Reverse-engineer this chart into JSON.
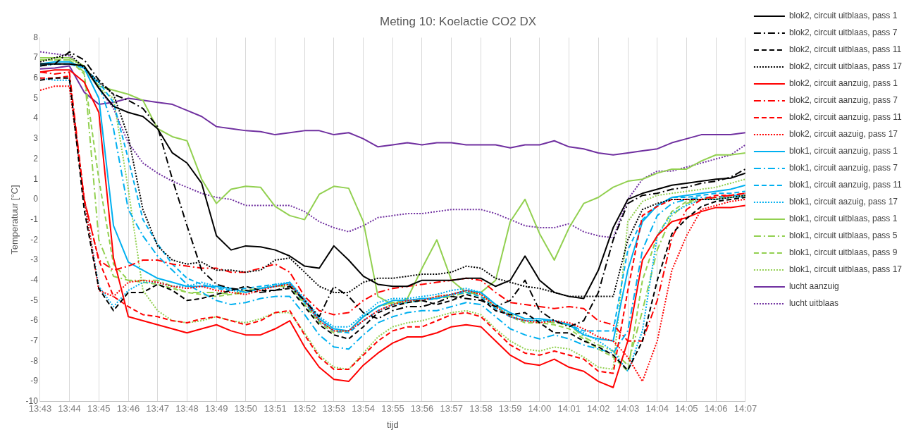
{
  "chart_data": {
    "type": "line",
    "title": "Meting 10: Koelactie CO2 DX",
    "xlabel": "tijd",
    "ylabel": "Temperatuur [°C]",
    "x": [
      13.7167,
      13.725,
      13.7333,
      13.7417,
      13.75,
      13.7583,
      13.7667,
      13.775,
      13.7833,
      13.7917,
      13.8,
      13.8083,
      13.8167,
      13.825,
      13.8333,
      13.8417,
      13.85,
      13.8583,
      13.8667,
      13.875,
      13.8833,
      13.8917,
      13.9,
      13.9083,
      13.9167,
      13.925,
      13.9333,
      13.9417,
      13.95,
      13.9583,
      13.9667,
      13.975,
      13.9833,
      13.9917,
      14.0,
      14.0083,
      14.0167,
      14.025,
      14.0333,
      14.0417,
      14.05,
      14.0583,
      14.0667,
      14.075,
      14.0833,
      14.0917,
      14.1,
      14.1083,
      14.1167
    ],
    "xlim": [
      13.7167,
      14.1167
    ],
    "xticks": [
      {
        "value": 13.7167,
        "label": "13:43"
      },
      {
        "value": 13.7333,
        "label": "13:44"
      },
      {
        "value": 13.75,
        "label": "13:45"
      },
      {
        "value": 13.7667,
        "label": "13:46"
      },
      {
        "value": 13.7833,
        "label": "13:47"
      },
      {
        "value": 13.8,
        "label": "13:48"
      },
      {
        "value": 13.8167,
        "label": "13:49"
      },
      {
        "value": 13.8333,
        "label": "13:50"
      },
      {
        "value": 13.85,
        "label": "13:51"
      },
      {
        "value": 13.8667,
        "label": "13:52"
      },
      {
        "value": 13.8833,
        "label": "13:53"
      },
      {
        "value": 13.9,
        "label": "13:54"
      },
      {
        "value": 13.9167,
        "label": "13:55"
      },
      {
        "value": 13.9333,
        "label": "13:56"
      },
      {
        "value": 13.95,
        "label": "13:57"
      },
      {
        "value": 13.9667,
        "label": "13:58"
      },
      {
        "value": 13.9833,
        "label": "13:59"
      },
      {
        "value": 14.0,
        "label": "14:00"
      },
      {
        "value": 14.0167,
        "label": "14:01"
      },
      {
        "value": 14.0333,
        "label": "14:02"
      },
      {
        "value": 14.05,
        "label": "14:03"
      },
      {
        "value": 14.0667,
        "label": "14:04"
      },
      {
        "value": 14.0833,
        "label": "14:05"
      },
      {
        "value": 14.1,
        "label": "14:06"
      },
      {
        "value": 14.1167,
        "label": "14:07"
      }
    ],
    "ylim": [
      -10,
      8
    ],
    "yticks": [
      -10,
      -9,
      -8,
      -7,
      -6,
      -5,
      -4,
      -3,
      -2,
      -1,
      0,
      1,
      2,
      3,
      4,
      5,
      6,
      7,
      8
    ],
    "grid": "x",
    "legend": "right",
    "marker": "none",
    "series": [
      {
        "name": "blok2, circuit uitblaas, pass 1",
        "color": "#000000",
        "line_style": "solid",
        "values": [
          6.7,
          6.7,
          6.7,
          6.6,
          5.5,
          4.6,
          4.3,
          4.1,
          3.5,
          2.3,
          1.8,
          0.8,
          -1.8,
          -2.5,
          -2.3,
          -2.35,
          -2.5,
          -2.8,
          -3.3,
          -3.4,
          -2.3,
          -3.0,
          -3.8,
          -4.2,
          -4.3,
          -4.3,
          -4.0,
          -4.0,
          -4.0,
          -3.9,
          -3.9,
          -4.3,
          -4.0,
          -2.8,
          -4.0,
          -4.6,
          -4.8,
          -4.9,
          -3.5,
          -1.4,
          0.0,
          0.3,
          0.5,
          0.7,
          0.8,
          0.9,
          1.0,
          1.05,
          1.3
        ]
      },
      {
        "name": "blok2, circuit uitblaas, pass 7",
        "color": "#000000",
        "line_style": "dashdot",
        "values": [
          6.6,
          6.7,
          7.3,
          6.9,
          5.9,
          5.2,
          4.9,
          4.5,
          3.6,
          1.0,
          -1.3,
          -3.5,
          -4.2,
          -4.4,
          -4.5,
          -4.6,
          -4.5,
          -4.3,
          -5.0,
          -5.8,
          -4.3,
          -4.8,
          -5.6,
          -5.9,
          -5.5,
          -5.3,
          -5.3,
          -5.1,
          -4.8,
          -4.9,
          -5.0,
          -5.3,
          -5.0,
          -4.0,
          -5.5,
          -6.0,
          -6.3,
          -6.0,
          -4.6,
          -2.0,
          -0.2,
          0.2,
          0.3,
          0.5,
          0.6,
          0.8,
          0.9,
          1.1,
          1.5
        ]
      },
      {
        "name": "blok2, circuit uitblaas, pass 11",
        "color": "#000000",
        "line_style": "dashed",
        "values": [
          5.9,
          6.0,
          6.0,
          -0.5,
          -4.4,
          -5.5,
          -4.6,
          -4.6,
          -4.2,
          -4.5,
          -5.0,
          -4.9,
          -4.7,
          -4.5,
          -4.3,
          -4.5,
          -4.5,
          -4.4,
          -5.3,
          -6.2,
          -6.7,
          -6.9,
          -6.3,
          -5.6,
          -5.3,
          -5.1,
          -5.0,
          -5.2,
          -5.0,
          -4.7,
          -4.9,
          -5.5,
          -5.7,
          -5.6,
          -6.1,
          -6.6,
          -6.6,
          -7.0,
          -7.3,
          -7.7,
          -8.45,
          -7.0,
          -4.0,
          -1.7,
          -0.95,
          -0.35,
          -0.1,
          0.0,
          0.1
        ]
      },
      {
        "name": "blok2, circuit uitblaas, pass 17",
        "color": "#000000",
        "line_style": "dotted",
        "values": [
          6.8,
          7.0,
          7.2,
          6.5,
          5.8,
          5.2,
          3.1,
          -0.5,
          -2.3,
          -3.0,
          -3.2,
          -3.1,
          -3.5,
          -3.5,
          -3.6,
          -3.5,
          -3.0,
          -2.9,
          -3.6,
          -4.3,
          -4.6,
          -4.6,
          -4.1,
          -3.9,
          -3.9,
          -3.8,
          -3.7,
          -3.7,
          -3.6,
          -3.3,
          -3.4,
          -3.9,
          -4.1,
          -4.3,
          -4.4,
          -4.6,
          -4.8,
          -4.8,
          -4.8,
          -4.8,
          -2.0,
          -0.5,
          -0.2,
          0.0,
          0.0,
          0.0,
          0.0,
          0.1,
          0.2
        ]
      },
      {
        "name": "blok2, circuit aanzuig, pass 1",
        "color": "#ff0000",
        "line_style": "solid",
        "values": [
          6.3,
          6.4,
          6.4,
          5.8,
          4.3,
          -2.9,
          -5.8,
          -6.0,
          -6.2,
          -6.4,
          -6.6,
          -6.4,
          -6.2,
          -6.5,
          -6.7,
          -6.7,
          -6.4,
          -6.0,
          -7.3,
          -8.3,
          -8.9,
          -9.0,
          -8.2,
          -7.6,
          -7.1,
          -6.8,
          -6.8,
          -6.6,
          -6.3,
          -6.2,
          -6.3,
          -7.0,
          -7.7,
          -8.1,
          -8.2,
          -7.9,
          -8.3,
          -8.5,
          -9.0,
          -9.3,
          -7.0,
          -3.0,
          -1.8,
          -1.1,
          -0.9,
          -0.6,
          -0.4,
          -0.4,
          -0.3
        ]
      },
      {
        "name": "blok2, circuit aanzuig, pass 7",
        "color": "#ff0000",
        "line_style": "dashdot",
        "values": [
          6.3,
          6.2,
          6.3,
          0.0,
          -3.0,
          -3.5,
          -3.3,
          -3.0,
          -3.0,
          -3.2,
          -3.3,
          -3.4,
          -3.4,
          -3.6,
          -3.6,
          -3.4,
          -3.2,
          -3.6,
          -4.8,
          -5.5,
          -5.7,
          -5.6,
          -5.0,
          -4.6,
          -4.4,
          -4.3,
          -4.2,
          -4.1,
          -4.0,
          -3.9,
          -4.0,
          -4.6,
          -5.1,
          -5.2,
          -5.3,
          -5.4,
          -5.3,
          -5.4,
          -6.0,
          -6.2,
          -7.0,
          -7.0,
          -5.0,
          -1.9,
          -0.5,
          0.0,
          0.1,
          0.2,
          0.3
        ]
      },
      {
        "name": "blok2, circuit aanzuig, pass 11",
        "color": "#ff0000",
        "line_style": "dashed",
        "values": [
          6.0,
          6.0,
          6.1,
          0.0,
          -3.0,
          -4.8,
          -5.3,
          -5.7,
          -5.8,
          -6.0,
          -6.1,
          -5.9,
          -5.8,
          -6.0,
          -6.2,
          -6.0,
          -5.6,
          -5.5,
          -6.7,
          -7.8,
          -8.4,
          -8.4,
          -7.7,
          -7.0,
          -6.5,
          -6.3,
          -6.3,
          -6.0,
          -5.7,
          -5.6,
          -5.8,
          -6.5,
          -7.2,
          -7.6,
          -7.7,
          -7.5,
          -7.7,
          -7.9,
          -8.5,
          -8.6,
          -4.5,
          -0.8,
          -0.35,
          0.0,
          0.0,
          0.0,
          0.2,
          0.2,
          0.3
        ]
      },
      {
        "name": "blok2, circuit aazuig, pass 17",
        "color": "#ff0000",
        "line_style": "dotted",
        "values": [
          5.4,
          5.6,
          5.6,
          0.0,
          -4.5,
          -4.8,
          -4.1,
          -4.0,
          -4.1,
          -4.3,
          -4.4,
          -4.3,
          -4.5,
          -4.6,
          -4.7,
          -4.5,
          -4.3,
          -4.2,
          -5.0,
          -6.0,
          -6.5,
          -6.5,
          -6.0,
          -5.5,
          -5.2,
          -5.0,
          -5.0,
          -4.8,
          -4.7,
          -4.5,
          -4.7,
          -5.3,
          -5.8,
          -6.0,
          -6.1,
          -6.0,
          -6.1,
          -6.4,
          -6.8,
          -7.0,
          -7.8,
          -9.0,
          -7.0,
          -3.5,
          -1.8,
          -0.5,
          -0.3,
          -0.1,
          0.0
        ]
      },
      {
        "name": "blok1, circuit aanzuig, pass 1",
        "color": "#00b0f0",
        "line_style": "solid",
        "values": [
          6.7,
          6.8,
          6.8,
          6.5,
          5.0,
          -1.3,
          -3.1,
          -3.5,
          -3.9,
          -4.1,
          -4.3,
          -4.3,
          -4.3,
          -4.4,
          -4.6,
          -4.4,
          -4.3,
          -4.1,
          -5.0,
          -5.9,
          -6.4,
          -6.5,
          -5.8,
          -5.3,
          -5.0,
          -5.0,
          -4.9,
          -4.9,
          -4.7,
          -4.5,
          -4.6,
          -5.2,
          -5.6,
          -5.9,
          -5.9,
          -6.0,
          -6.2,
          -6.7,
          -6.9,
          -7.0,
          -3.5,
          -1.1,
          -0.3,
          0.1,
          0.2,
          0.3,
          0.4,
          0.5,
          0.7
        ]
      },
      {
        "name": "blok1, circuit aanzuig, pass 7",
        "color": "#00b0f0",
        "line_style": "dashdot",
        "values": [
          6.7,
          6.7,
          6.7,
          6.5,
          5.7,
          3.5,
          -0.5,
          -1.8,
          -2.8,
          -3.5,
          -4.2,
          -4.6,
          -5.0,
          -5.2,
          -5.1,
          -4.9,
          -4.8,
          -4.8,
          -5.7,
          -6.7,
          -7.3,
          -7.4,
          -6.7,
          -6.1,
          -5.8,
          -5.6,
          -5.5,
          -5.5,
          -5.3,
          -5.1,
          -5.2,
          -5.8,
          -6.4,
          -6.7,
          -6.9,
          -6.7,
          -6.9,
          -7.2,
          -7.4,
          -7.6,
          -6.5,
          -2.5,
          -0.8,
          -0.2,
          0.0,
          0.1,
          0.1,
          0.2,
          0.2
        ]
      },
      {
        "name": "blok1, circuit aanzuig, pass 11",
        "color": "#00b0f0",
        "line_style": "dashed",
        "values": [
          6.6,
          6.7,
          6.7,
          6.5,
          5.8,
          4.8,
          2.0,
          -1.0,
          -2.2,
          -3.2,
          -3.9,
          -4.2,
          -4.4,
          -4.5,
          -4.4,
          -4.3,
          -4.2,
          -4.2,
          -5.1,
          -6.0,
          -6.5,
          -6.6,
          -6.0,
          -5.5,
          -5.2,
          -5.1,
          -5.0,
          -4.9,
          -4.7,
          -4.6,
          -4.8,
          -5.4,
          -5.8,
          -6.0,
          -6.0,
          -6.0,
          -6.2,
          -6.5,
          -6.5,
          -6.5,
          -2.5,
          -1.0,
          -0.3,
          0.1,
          0.1,
          0.2,
          0.3,
          0.3,
          0.4
        ]
      },
      {
        "name": "blok1, circuit aazuig, pass 17",
        "color": "#00b0f0",
        "line_style": "dotted",
        "values": [
          6.0,
          5.9,
          5.9,
          0.0,
          -4.3,
          -5.3,
          -4.5,
          -4.1,
          -4.1,
          -4.3,
          -4.3,
          -4.1,
          -4.3,
          -4.5,
          -4.6,
          -4.4,
          -4.2,
          -4.1,
          -4.9,
          -5.8,
          -6.3,
          -6.3,
          -5.7,
          -5.1,
          -4.9,
          -4.9,
          -4.8,
          -4.7,
          -4.5,
          -4.4,
          -4.6,
          -5.2,
          -5.8,
          -6.0,
          -6.0,
          -6.0,
          -6.2,
          -6.6,
          -7.0,
          -7.5,
          -8.5,
          -6.5,
          -1.8,
          -0.7,
          -0.3,
          0.0,
          0.0,
          0.1,
          0.1
        ]
      },
      {
        "name": "blok1, circuit uitblaas, pass 1",
        "color": "#92d050",
        "line_style": "solid",
        "values": [
          7.0,
          7.0,
          7.0,
          6.6,
          5.6,
          5.4,
          5.2,
          4.9,
          3.5,
          3.1,
          2.9,
          1.0,
          -0.2,
          0.5,
          0.65,
          0.6,
          -0.35,
          -0.8,
          -1.0,
          0.25,
          0.65,
          0.55,
          -1.1,
          -4.8,
          -5.2,
          -4.9,
          -3.4,
          -2.0,
          -4.0,
          -4.6,
          -4.6,
          -4.0,
          -1.1,
          0.0,
          -1.7,
          -3.0,
          -1.4,
          -0.2,
          0.1,
          0.6,
          0.9,
          1.0,
          1.3,
          1.5,
          1.5,
          1.9,
          2.2,
          2.2,
          2.3
        ]
      },
      {
        "name": "blok1, circuit uitblaas, pass 5",
        "color": "#92d050",
        "line_style": "dashdot",
        "values": [
          6.9,
          6.9,
          6.9,
          6.3,
          -2.0,
          -3.8,
          -4.0,
          -4.0,
          -4.0,
          -4.3,
          -4.6,
          -4.6,
          -4.6,
          -4.7,
          -4.6,
          -4.4,
          -4.3,
          -4.2,
          -5.1,
          -6.0,
          -6.5,
          -6.5,
          -5.8,
          -5.3,
          -5.1,
          -5.1,
          -5.0,
          -4.9,
          -4.8,
          -4.6,
          -4.7,
          -5.2,
          -5.7,
          -6.0,
          -6.0,
          -6.1,
          -6.2,
          -6.8,
          -7.2,
          -7.5,
          -8.2,
          -5.5,
          -2.5,
          -0.8,
          -0.2,
          0.0,
          0.0,
          0.1,
          0.2
        ]
      },
      {
        "name": "blok1, circuit uitblaas, pass 9",
        "color": "#92d050",
        "line_style": "dashed",
        "values": [
          6.9,
          6.9,
          6.9,
          6.2,
          1.0,
          -3.2,
          -4.0,
          -4.1,
          -4.2,
          -4.4,
          -4.6,
          -4.7,
          -4.8,
          -4.7,
          -4.5,
          -4.4,
          -4.3,
          -4.3,
          -5.2,
          -6.1,
          -6.6,
          -6.5,
          -5.8,
          -5.3,
          -5.1,
          -5.0,
          -5.0,
          -4.8,
          -4.7,
          -4.6,
          -4.8,
          -5.3,
          -5.8,
          -6.1,
          -6.1,
          -6.2,
          -6.4,
          -6.9,
          -7.4,
          -7.8,
          -8.5,
          -4.0,
          -1.8,
          -0.6,
          -0.1,
          0.0,
          0.1,
          0.1,
          0.2
        ]
      },
      {
        "name": "blok1, circuit uitblaas, pass 17",
        "color": "#92d050",
        "line_style": "dotted",
        "values": [
          7.0,
          7.0,
          7.0,
          6.5,
          5.5,
          5.0,
          0.5,
          -4.5,
          -5.5,
          -6.0,
          -6.1,
          -6.0,
          -5.8,
          -6.0,
          -6.1,
          -5.9,
          -5.6,
          -5.6,
          -6.6,
          -7.7,
          -8.3,
          -8.4,
          -7.6,
          -6.8,
          -6.3,
          -6.1,
          -6.0,
          -5.8,
          -5.6,
          -5.5,
          -5.7,
          -6.4,
          -7.0,
          -7.4,
          -7.5,
          -7.3,
          -7.4,
          -7.8,
          -8.3,
          -8.4,
          -1.1,
          -0.1,
          0.2,
          0.3,
          0.4,
          0.5,
          0.6,
          0.8,
          1.0
        ]
      },
      {
        "name": "lucht aanzuig",
        "color": "#7030a0",
        "line_style": "solid",
        "values": [
          6.45,
          6.5,
          6.6,
          5.3,
          4.7,
          4.8,
          5.0,
          4.9,
          4.8,
          4.7,
          4.4,
          4.1,
          3.6,
          3.5,
          3.4,
          3.35,
          3.2,
          3.3,
          3.4,
          3.4,
          3.2,
          3.3,
          3.0,
          2.6,
          2.7,
          2.8,
          2.7,
          2.8,
          2.8,
          2.7,
          2.7,
          2.7,
          2.55,
          2.7,
          2.7,
          2.9,
          2.6,
          2.5,
          2.3,
          2.2,
          2.3,
          2.4,
          2.5,
          2.8,
          3.0,
          3.2,
          3.2,
          3.2,
          3.3
        ]
      },
      {
        "name": "lucht uitblaas",
        "color": "#7030a0",
        "line_style": "dotted",
        "values": [
          7.3,
          7.2,
          7.1,
          6.5,
          5.5,
          4.5,
          2.8,
          1.8,
          1.3,
          0.9,
          0.6,
          0.3,
          0.1,
          0.0,
          -0.3,
          -0.3,
          -0.3,
          -0.3,
          -0.6,
          -1.1,
          -1.4,
          -1.6,
          -1.3,
          -0.9,
          -0.8,
          -0.7,
          -0.7,
          -0.6,
          -0.5,
          -0.5,
          -0.5,
          -0.7,
          -1.0,
          -1.3,
          -1.4,
          -1.4,
          -1.2,
          -1.6,
          -1.8,
          -1.9,
          0.0,
          1.0,
          1.4,
          1.4,
          1.6,
          1.8,
          2.0,
          2.2,
          2.7
        ]
      }
    ]
  }
}
